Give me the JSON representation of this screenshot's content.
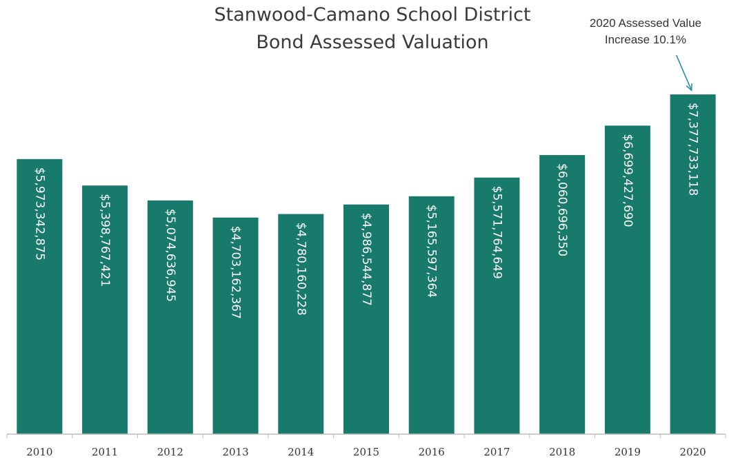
{
  "chart_data": {
    "type": "bar",
    "title": [
      "Stanwood-Camano School District",
      "Bond Assessed Valuation"
    ],
    "annotation": [
      "2020 Assessed Value",
      "Increase 10.1%"
    ],
    "categories": [
      "2010",
      "2011",
      "2012",
      "2013",
      "2014",
      "2015",
      "2016",
      "2017",
      "2018",
      "2019",
      "2020"
    ],
    "values": [
      5973342875,
      5398767421,
      5074636945,
      4703162367,
      4780160228,
      4986544877,
      5165597364,
      5571764649,
      6060696350,
      6699427690,
      7377733118
    ],
    "data_labels": [
      "$5,973,342,875",
      "$5,398,767,421",
      "$5,074,636,945",
      "$4,703,162,367",
      "$4,780,160,228",
      "$4,986,544,877",
      "$5,165,597,364",
      "$5,571,764,649",
      "$6,060,696,350",
      "$6,699,427,690",
      "$7,377,733,118"
    ],
    "bar_color": "#177a6b",
    "label_color": "#ffffff",
    "arrow_color": "#2a8fa0",
    "xlabel": "",
    "ylabel": "",
    "grid": false,
    "legend": "none"
  }
}
